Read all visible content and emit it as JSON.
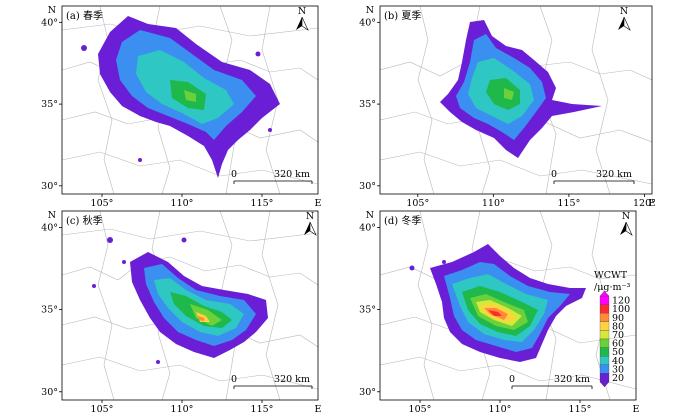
{
  "panels": [
    {
      "label": "(a) 春季",
      "x_ticks": [
        "105°",
        "110°",
        "115°"
      ],
      "x_tick_values": [
        105,
        110,
        115
      ],
      "x_axis_letter": "E",
      "y_ticks": [
        "40°",
        "35°",
        "30°"
      ],
      "y_tick_values": [
        40,
        35,
        30
      ],
      "y_axis_letter": "N",
      "north_letter": "N",
      "scale_zero": "0",
      "scale_text": "320 km",
      "lon_range": [
        102.5,
        118.5
      ],
      "lat_range": [
        29.5,
        41
      ]
    },
    {
      "label": "(b) 夏季",
      "x_ticks": [
        "105°",
        "110°",
        "115°",
        "120°"
      ],
      "x_tick_values": [
        105,
        110,
        115,
        120
      ],
      "x_axis_letter": "E",
      "y_ticks": [
        "40°",
        "35°",
        "30°"
      ],
      "y_tick_values": [
        40,
        35,
        30
      ],
      "y_axis_letter": "N",
      "north_letter": "N",
      "scale_zero": "0",
      "scale_text": "320 km",
      "lon_range": [
        102.5,
        120.5
      ],
      "lat_range": [
        29.5,
        41
      ]
    },
    {
      "label": "(c) 秋季",
      "x_ticks": [
        "105°",
        "110°",
        "115°"
      ],
      "x_tick_values": [
        105,
        110,
        115
      ],
      "x_axis_letter": "E",
      "y_ticks": [
        "40°",
        "35°",
        "30°"
      ],
      "y_tick_values": [
        40,
        35,
        30
      ],
      "y_axis_letter": "N",
      "north_letter": "N",
      "scale_zero": "0",
      "scale_text": "320 km",
      "lon_range": [
        102.5,
        118.5
      ],
      "lat_range": [
        29.5,
        41
      ]
    },
    {
      "label": "(d) 冬季",
      "x_ticks": [
        "105°",
        "110°",
        "115°"
      ],
      "x_tick_values": [
        105,
        110,
        115
      ],
      "x_axis_letter": "E",
      "y_ticks": [
        "40°",
        "35°",
        "30°"
      ],
      "y_tick_values": [
        40,
        35,
        30
      ],
      "y_axis_letter": "N",
      "north_letter": "N",
      "scale_zero": "0",
      "scale_text": "320 km",
      "lon_range": [
        102.5,
        118.5
      ],
      "lat_range": [
        29.5,
        41
      ]
    }
  ],
  "legend": {
    "title": "WCWT",
    "unit": "/μg·m⁻³",
    "levels": [
      {
        "value": "120",
        "color": "#ff00ff"
      },
      {
        "value": "100",
        "color": "#ff2a2a"
      },
      {
        "value": "90",
        "color": "#ff8a3a"
      },
      {
        "value": "80",
        "color": "#ffd23f"
      },
      {
        "value": "70",
        "color": "#d8e83a"
      },
      {
        "value": "60",
        "color": "#6ad13a"
      },
      {
        "value": "50",
        "color": "#1fb84a"
      },
      {
        "value": "40",
        "color": "#2fc7c4"
      },
      {
        "value": "30",
        "color": "#3a8ff0"
      },
      {
        "value": "20",
        "color": "#6a1fd6"
      }
    ]
  }
}
